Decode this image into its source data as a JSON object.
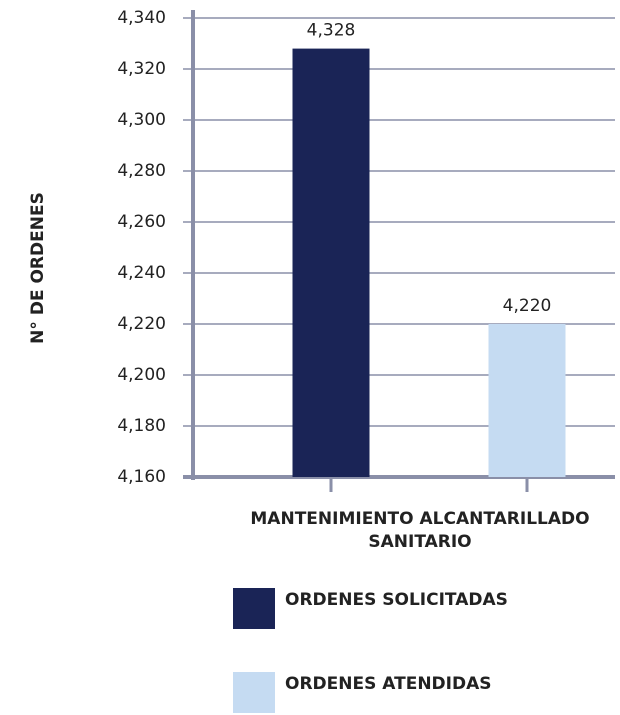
{
  "chart_data": {
    "type": "bar",
    "y_axis_label": "N° DE ORDENES",
    "categories": [
      "MANTENIMIENTO ALCANTARILLADO SANITARIO"
    ],
    "series": [
      {
        "name": "ORDENES SOLICITADAS",
        "color": "#1a2456",
        "values": [
          4328
        ],
        "value_labels": [
          "4,328"
        ]
      },
      {
        "name": "ORDENES ATENDIDAS",
        "color": "#c5dbf2",
        "values": [
          4220
        ],
        "value_labels": [
          "4,220"
        ]
      }
    ],
    "ylim": [
      4160,
      4340
    ],
    "yticks": [
      {
        "value": 4160,
        "label": "4,160"
      },
      {
        "value": 4180,
        "label": "4,180"
      },
      {
        "value": 4200,
        "label": "4,200"
      },
      {
        "value": 4220,
        "label": "4,220"
      },
      {
        "value": 4240,
        "label": "4,240"
      },
      {
        "value": 4260,
        "label": "4,260"
      },
      {
        "value": 4280,
        "label": "4,280"
      },
      {
        "value": 4300,
        "label": "4,300"
      },
      {
        "value": 4320,
        "label": "4,320"
      },
      {
        "value": 4340,
        "label": "4,340"
      }
    ],
    "grid": true,
    "legend": "bottom"
  }
}
